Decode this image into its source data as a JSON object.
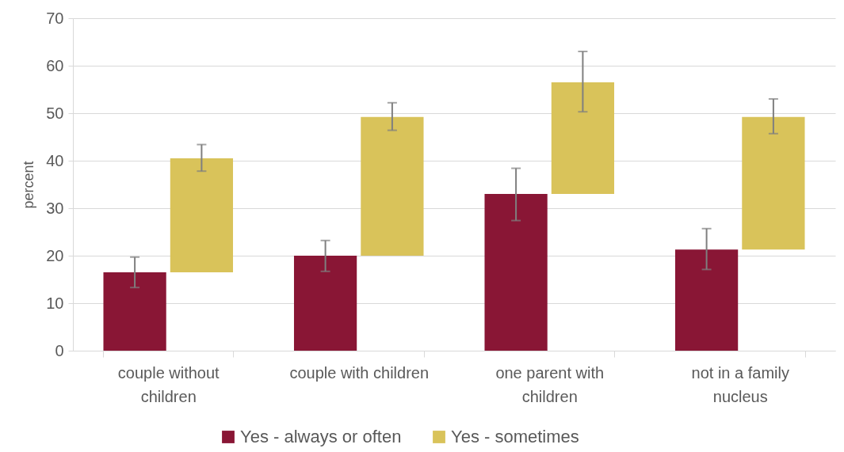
{
  "chart_data": {
    "type": "bar",
    "ylabel": "percent",
    "categories": [
      "couple without children",
      "couple with children",
      "one parent with children",
      "not in a family nucleus"
    ],
    "series": [
      {
        "name": "Yes - always or often",
        "color": "#891635",
        "values": [
          16.5,
          20.0,
          33.0,
          21.3
        ],
        "errors": [
          [
            13.3,
            19.7
          ],
          [
            16.7,
            23.2
          ],
          [
            27.4,
            38.4
          ],
          [
            17.1,
            25.7
          ]
        ]
      },
      {
        "name": "Yes - sometimes",
        "color": "#d9c35a",
        "base": [
          16.5,
          20.0,
          33.0,
          21.3
        ],
        "values": [
          24.0,
          29.2,
          23.5,
          27.9
        ],
        "errors": [
          [
            37.8,
            43.4
          ],
          [
            46.4,
            52.2
          ],
          [
            50.3,
            63.0
          ],
          [
            45.7,
            53.0
          ]
        ]
      }
    ],
    "ylim": [
      0,
      70
    ],
    "yticks": [
      0,
      10,
      20,
      30,
      40,
      50,
      60,
      70
    ],
    "grid": "y",
    "legend": "bottom"
  }
}
